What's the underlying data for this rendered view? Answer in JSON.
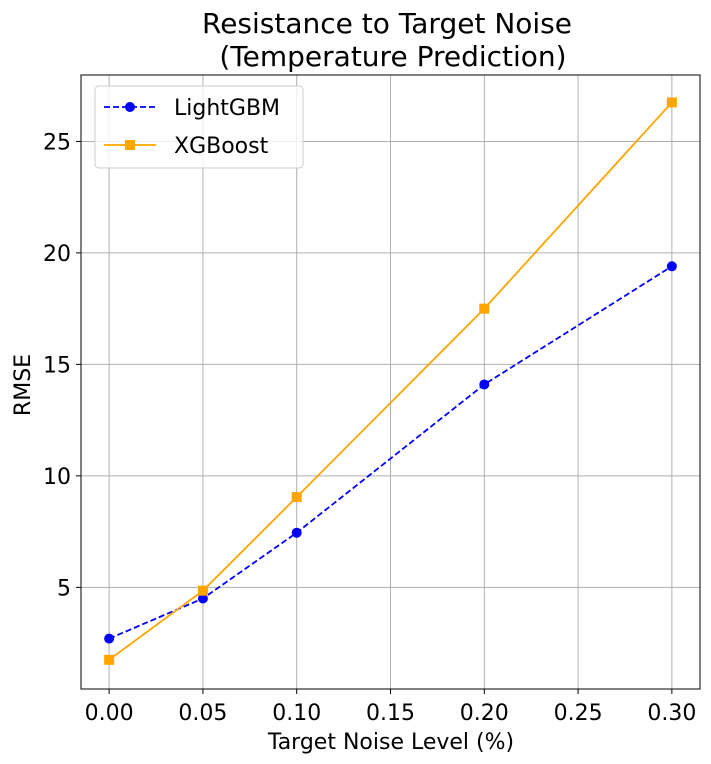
{
  "chart_data": {
    "type": "line",
    "title_lines": [
      "Resistance to Target Noise",
      "(Temperature Prediction)"
    ],
    "xlabel": "Target Noise Level (%)",
    "ylabel": "RMSE",
    "x": [
      0.0,
      0.05,
      0.1,
      0.2,
      0.3
    ],
    "xlim": [
      -0.015,
      0.315
    ],
    "ylim": [
      0.44,
      27.98
    ],
    "xticks": [
      0.0,
      0.05,
      0.1,
      0.15,
      0.2,
      0.25,
      0.3
    ],
    "xtick_labels": [
      "0.00",
      "0.05",
      "0.10",
      "0.15",
      "0.20",
      "0.25",
      "0.30"
    ],
    "yticks": [
      5,
      10,
      15,
      20,
      25
    ],
    "ytick_labels": [
      "5",
      "10",
      "15",
      "20",
      "25"
    ],
    "grid": true,
    "legend_position": "top-left",
    "series": [
      {
        "name": "LightGBM",
        "values": [
          2.7,
          4.5,
          7.45,
          14.1,
          19.4
        ],
        "color": "#0000ff",
        "line_style": "dashed",
        "marker": "circle"
      },
      {
        "name": "XGBoost",
        "values": [
          1.75,
          4.85,
          9.05,
          17.5,
          26.75
        ],
        "color": "#ffa500",
        "line_style": "solid",
        "marker": "square"
      }
    ]
  }
}
